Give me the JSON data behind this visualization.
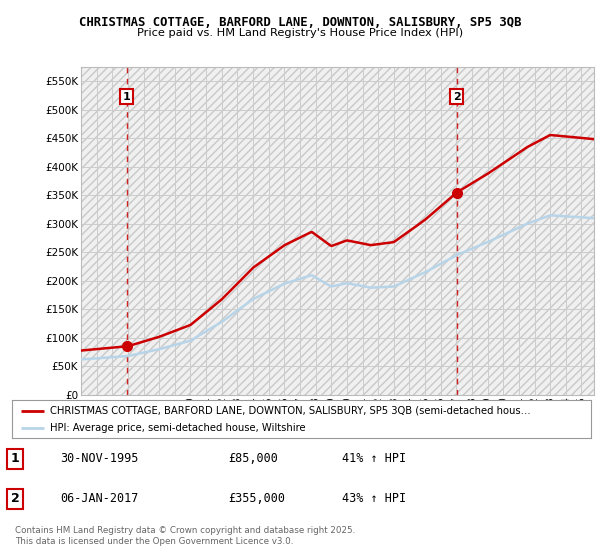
{
  "title_line1": "CHRISTMAS COTTAGE, BARFORD LANE, DOWNTON, SALISBURY, SP5 3QB",
  "title_line2": "Price paid vs. HM Land Registry's House Price Index (HPI)",
  "ylim": [
    0,
    575000
  ],
  "yticks": [
    0,
    50000,
    100000,
    150000,
    200000,
    250000,
    300000,
    350000,
    400000,
    450000,
    500000,
    550000
  ],
  "ytick_labels": [
    "£0",
    "£50K",
    "£100K",
    "£150K",
    "£200K",
    "£250K",
    "£300K",
    "£350K",
    "£400K",
    "£450K",
    "£500K",
    "£550K"
  ],
  "sale1_date_num": 1995.917,
  "sale1_price": 85000,
  "sale2_date_num": 2017.02,
  "sale2_price": 355000,
  "line_color_property": "#cc0000",
  "line_color_hpi": "#b8d4e8",
  "vline_color": "#cc0000",
  "grid_color": "#cccccc",
  "bg_color": "#ffffff",
  "plot_bg_color": "#f0f0f0",
  "legend_label_property": "CHRISTMAS COTTAGE, BARFORD LANE, DOWNTON, SALISBURY, SP5 3QB (semi-detached hous…",
  "legend_label_hpi": "HPI: Average price, semi-detached house, Wiltshire",
  "table_row1": [
    "1",
    "30-NOV-1995",
    "£85,000",
    "41% ↑ HPI"
  ],
  "table_row2": [
    "2",
    "06-JAN-2017",
    "£355,000",
    "43% ↑ HPI"
  ],
  "footer_text": "Contains HM Land Registry data © Crown copyright and database right 2025.\nThis data is licensed under the Open Government Licence v3.0.",
  "xmin": 1993.0,
  "xmax": 2025.8
}
